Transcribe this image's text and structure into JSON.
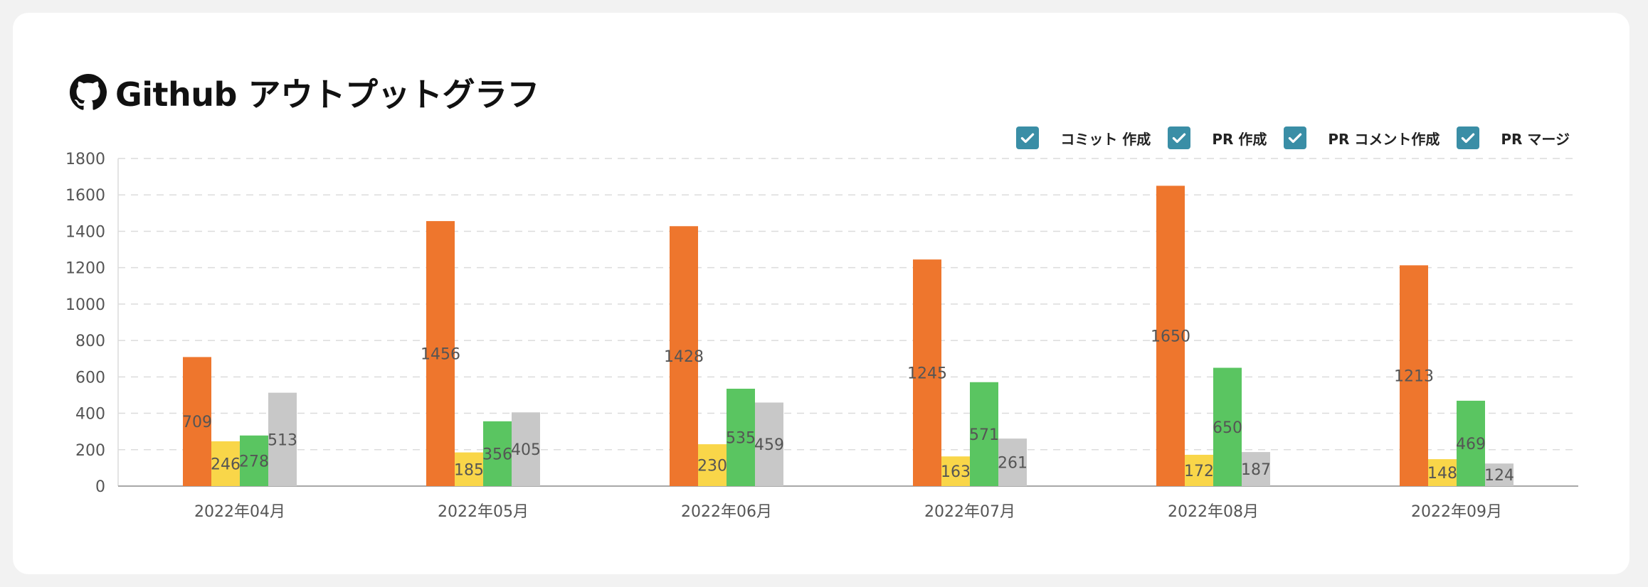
{
  "header": {
    "icon": "github-icon",
    "title": "Github アウトプットグラフ"
  },
  "legend": [
    {
      "label": "コミット 作成",
      "checked": true
    },
    {
      "label": "PR 作成",
      "checked": true
    },
    {
      "label": "PR コメント作成",
      "checked": true
    },
    {
      "label": "PR マージ",
      "checked": true
    }
  ],
  "chart_data": {
    "type": "bar",
    "categories": [
      "2022年04月",
      "2022年05月",
      "2022年06月",
      "2022年07月",
      "2022年08月",
      "2022年09月"
    ],
    "series": [
      {
        "name": "コミット 作成",
        "color": "#ee762d",
        "values": [
          709,
          1456,
          1428,
          1245,
          1650,
          1213
        ]
      },
      {
        "name": "PR 作成",
        "color": "#f9d649",
        "values": [
          246,
          185,
          230,
          163,
          172,
          148
        ]
      },
      {
        "name": "PR コメント作成",
        "color": "#5ac561",
        "values": [
          278,
          356,
          535,
          571,
          650,
          469
        ]
      },
      {
        "name": "PR マージ",
        "color": "#c8c8c8",
        "values": [
          513,
          405,
          459,
          261,
          187,
          124
        ]
      }
    ],
    "yticks": [
      0,
      200,
      400,
      600,
      800,
      1000,
      1200,
      1400,
      1600,
      1800
    ],
    "ylim": [
      0,
      1800
    ],
    "grid": true,
    "legend_position": "top-right"
  }
}
